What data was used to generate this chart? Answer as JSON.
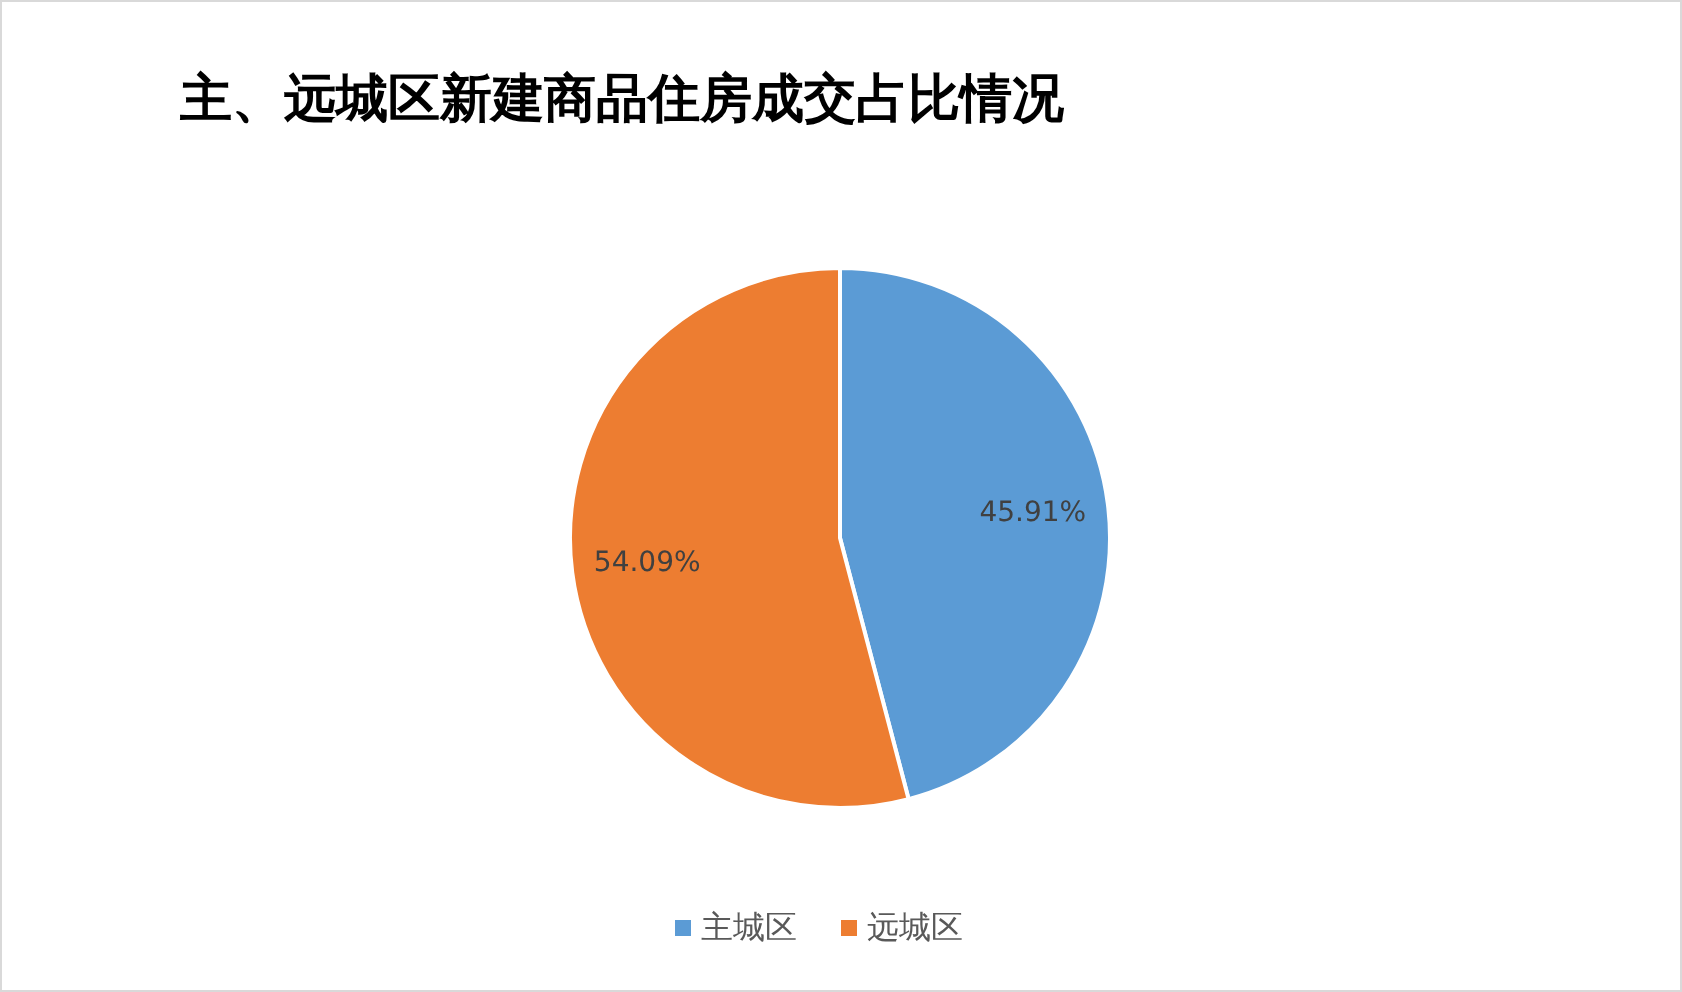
{
  "chart_data": {
    "type": "pie",
    "title": "主、远城区新建商品住房成交占比情况",
    "categories": [
      "主城区",
      "远城区"
    ],
    "values": [
      45.91,
      54.09
    ],
    "value_labels": [
      "45.91%",
      "54.09%"
    ],
    "colors": [
      "#5b9bd5",
      "#ed7d31"
    ],
    "legend": "bottom"
  }
}
